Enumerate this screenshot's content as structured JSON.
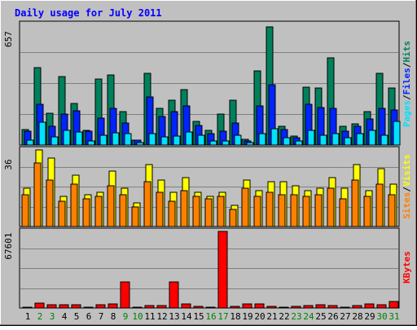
{
  "chart_data": {
    "type": "bar",
    "title": "Daily usage for July 2011",
    "categories": [
      "1",
      "2",
      "3",
      "4",
      "5",
      "6",
      "7",
      "8",
      "9",
      "10",
      "11",
      "12",
      "13",
      "14",
      "15",
      "16",
      "17",
      "18",
      "19",
      "20",
      "21",
      "22",
      "23",
      "24",
      "25",
      "26",
      "27",
      "28",
      "29",
      "30",
      "31"
    ],
    "weekend_days": [
      "2",
      "3",
      "9",
      "10",
      "16",
      "17",
      "23",
      "24",
      "30",
      "31"
    ],
    "panels": [
      {
        "name": "hits-files-pages",
        "ymax": 657,
        "ymax_label": "657",
        "legend": [
          "Pages",
          "Files",
          "Hits"
        ],
        "series": [
          {
            "name": "Hits",
            "color": "#00805c",
            "values": [
              85,
              420,
              175,
              375,
              225,
              80,
              360,
              380,
              180,
              25,
              390,
              200,
              245,
              300,
              130,
              80,
              170,
              245,
              30,
              405,
              645,
              100,
              50,
              315,
              310,
              475,
              100,
              115,
              180,
              390,
              310
            ]
          },
          {
            "name": "Files",
            "color": "#0024ff",
            "values": [
              75,
              220,
              100,
              170,
              185,
              75,
              145,
              200,
              120,
              25,
              260,
              155,
              180,
              215,
              105,
              60,
              75,
              120,
              20,
              215,
              330,
              85,
              40,
              220,
              205,
              200,
              75,
              100,
              140,
              200,
              190
            ]
          },
          {
            "name": "Pages",
            "color": "#00e0ff",
            "values": [
              25,
              125,
              45,
              80,
              70,
              20,
              55,
              65,
              60,
              15,
              60,
              45,
              50,
              70,
              55,
              20,
              20,
              55,
              15,
              60,
              90,
              40,
              20,
              80,
              55,
              60,
              40,
              60,
              80,
              55,
              130
            ]
          }
        ]
      },
      {
        "name": "visits-sites",
        "ymax": 36,
        "ymax_label": "36",
        "legend": [
          "Sites",
          "Visits"
        ],
        "series": [
          {
            "name": "Visits",
            "color": "#ffff00",
            "values": [
              18,
              36,
              32,
              14,
              24,
              15,
              16,
              26,
              18,
              11,
              29,
              22,
              16,
              23,
              16,
              14,
              16,
              10,
              22,
              17,
              21,
              21,
              19,
              17,
              18,
              23,
              18,
              29,
              17,
              27,
              20
            ]
          },
          {
            "name": "Sites",
            "color": "#ff8000",
            "values": [
              15,
              30,
              22,
              12,
              20,
              13,
              14,
              19,
              15,
              9,
              21,
              16,
              12,
              17,
              14,
              13,
              14,
              8,
              18,
              14,
              16,
              15,
              15,
              14,
              15,
              18,
              13,
              22,
              14,
              20,
              15
            ]
          }
        ]
      },
      {
        "name": "kbytes",
        "ymax": 67601,
        "ymax_label": "67601",
        "legend": [
          "KBytes"
        ],
        "series": [
          {
            "name": "KBytes",
            "color": "#ff0000",
            "values": [
              1000,
              4500,
              2900,
              3200,
              3000,
              1000,
              3100,
              3300,
              23000,
              900,
              2000,
              2300,
              23000,
              3700,
              1100,
              1000,
              67601,
              1100,
              3300,
              3500,
              1600,
              1000,
              1100,
              2100,
              2900,
              1900,
              1000,
              2000,
              3300,
              2900,
              5600
            ]
          }
        ]
      }
    ]
  },
  "colors": {
    "background": "#c0c0c0",
    "plot_background": "#c0c0c0",
    "title_color": "#0000ff",
    "weekday_label": "#000000",
    "weekend_label": "#008000"
  }
}
